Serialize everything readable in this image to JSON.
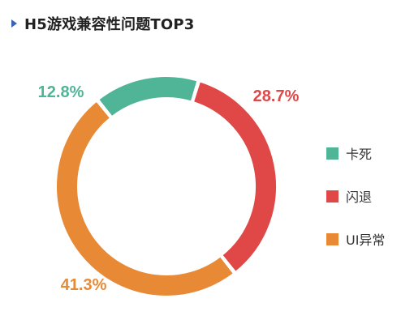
{
  "header": {
    "title": "H5游戏兼容性问题TOP3"
  },
  "chart_data": {
    "type": "pie",
    "donut": true,
    "title": "H5游戏兼容性问题TOP3",
    "slices": [
      {
        "name": "闪退",
        "value": 28.7,
        "label": "28.7%",
        "color": "#e04848"
      },
      {
        "name": "UI异常",
        "value": 41.3,
        "label": "41.3%",
        "color": "#e88a35"
      },
      {
        "name": "卡死",
        "value": 12.8,
        "label": "12.8%",
        "color": "#4fb596"
      }
    ],
    "legend": {
      "position": "right",
      "items": [
        {
          "name": "卡死",
          "color": "#4fb596"
        },
        {
          "name": "闪退",
          "color": "#e04848"
        },
        {
          "name": "UI异常",
          "color": "#e88a35"
        }
      ]
    }
  }
}
